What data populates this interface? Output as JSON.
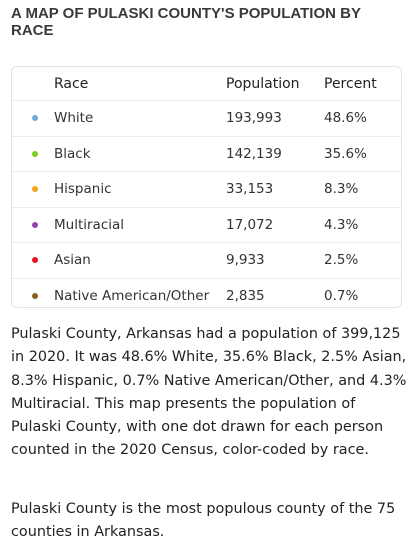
{
  "title": "A MAP OF PULASKI COUNTY'S POPULATION BY RACE",
  "table": {
    "headers": {
      "race": "Race",
      "population": "Population",
      "percent": "Percent"
    },
    "rows": [
      {
        "race": "White",
        "population": "193,993",
        "percent": "48.6%",
        "dot_color": "#6fa8dc"
      },
      {
        "race": "Black",
        "population": "142,139",
        "percent": "35.6%",
        "dot_color": "#7ccd1d"
      },
      {
        "race": "Hispanic",
        "population": "33,153",
        "percent": "8.3%",
        "dot_color": "#f4a51c"
      },
      {
        "race": "Multiracial",
        "population": "17,072",
        "percent": "4.3%",
        "dot_color": "#8e44ad"
      },
      {
        "race": "Asian",
        "population": "9,933",
        "percent": "2.5%",
        "dot_color": "#e8141c"
      },
      {
        "race": "Native American/Other",
        "population": "2,835",
        "percent": "0.7%",
        "dot_color": "#8b5a2b"
      }
    ]
  },
  "paragraphs": [
    "Pulaski County, Arkansas had a population of 399,125 in 2020. It was 48.6% White, 35.6% Black, 2.5% Asian, 8.3% Hispanic, 0.7% Native American/Other, and 4.3% Multiracial. This map presents the population of Pulaski County, with one dot drawn for each person counted in the 2020 Census, color-coded by race.",
    "Pulaski County is the most populous county of the 75 counties in Arkansas."
  ]
}
